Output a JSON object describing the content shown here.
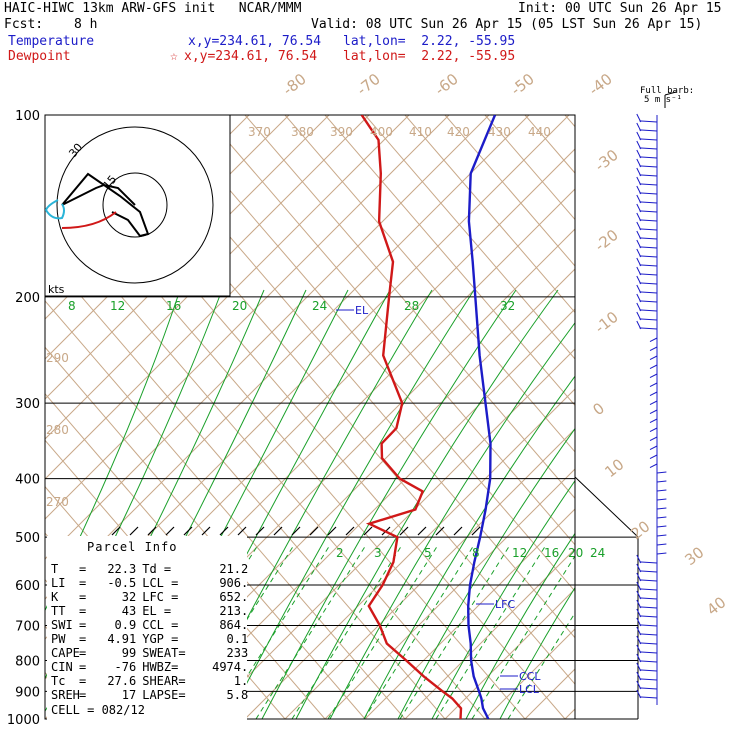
{
  "header": {
    "model": "HAIC-HIWC 13km ARW-GFS init   NCAR/MMM",
    "init": "Init: 00 UTC Sun 26 Apr 15",
    "fcst_label": "Fcst:",
    "fcst_value": "8 h",
    "valid": "Valid: 08 UTC Sun 26 Apr 15 (05 LST Sun 26 Apr 15)",
    "temp_label": "Temperature",
    "temp_xy": "x,y=234.61, 76.54",
    "temp_latlon": "lat,lon=  2.22, -55.95",
    "dew_label": "Dewpoint",
    "dew_xy": "x,y=234.61, 76.54",
    "dew_latlon": "lat,lon=  2.22, -55.95",
    "barb_label_1": "Full barb:",
    "barb_label_2": "5 m s⁻¹"
  },
  "parcel": {
    "title": "Parcel Info",
    "rows": [
      {
        "l": "T",
        "lv": "22.3",
        "r": "Td =",
        "rv": "21.2"
      },
      {
        "l": "LI",
        "lv": "-0.5",
        "r": "LCL =",
        "rv": "906."
      },
      {
        "l": "K",
        "lv": "32",
        "r": "LFC =",
        "rv": "652."
      },
      {
        "l": "TT",
        "lv": "43",
        "r": "EL =",
        "rv": "213."
      },
      {
        "l": "SWI",
        "lv": "0.9",
        "r": "CCL =",
        "rv": "864."
      },
      {
        "l": "PW",
        "lv": "4.91",
        "r": "YGP =",
        "rv": "0.1"
      },
      {
        "l": "CAPE",
        "lv": "99",
        "r": "SWEAT=",
        "rv": "233"
      },
      {
        "l": "CIN",
        "lv": "-76",
        "r": "HWBZ=",
        "rv": "4974."
      },
      {
        "l": "Tc",
        "lv": "27.6",
        "r": "SHEAR=",
        "rv": "1."
      },
      {
        "l": "SREH",
        "lv": "17",
        "r": "LAPSE=",
        "rv": "5.8"
      }
    ],
    "cell": "CELL = 082/12"
  },
  "chart_data": {
    "type": "line",
    "title": "",
    "ylabel": "",
    "pressure_levels": [
      100,
      200,
      300,
      400,
      500,
      600,
      700,
      800,
      900,
      1000
    ],
    "dry_adiabat_labels": [
      {
        "label": "370"
      },
      {
        "label": "380"
      },
      {
        "label": "390"
      },
      {
        "label": "400"
      },
      {
        "label": "410"
      },
      {
        "label": "420"
      },
      {
        "label": "430"
      },
      {
        "label": "440"
      },
      {
        "label": "290"
      },
      {
        "label": "280"
      },
      {
        "label": "270"
      }
    ],
    "isotherm_labels": [
      "-80",
      "-70",
      "-60",
      "-50",
      "-40",
      "-30",
      "-20",
      "-10",
      "0",
      "10",
      "20",
      "30",
      "40"
    ],
    "mixing_ratio_labels_upper": [
      "8",
      "12",
      "16",
      "20",
      "24",
      "28",
      "32"
    ],
    "mixing_ratio_labels_lower": [
      "2",
      "3",
      "5",
      "8",
      "12",
      "16",
      "20",
      "24"
    ],
    "series": [
      {
        "name": "Temperature",
        "color": "#1c1cc8",
        "points": [
          [
            1000,
            27.3
          ],
          [
            960,
            24.6
          ],
          [
            925,
            22.7
          ],
          [
            900,
            21.1
          ],
          [
            850,
            17.7
          ],
          [
            800,
            14.6
          ],
          [
            750,
            11.7
          ],
          [
            700,
            8.3
          ],
          [
            650,
            5.0
          ],
          [
            600,
            1.8
          ],
          [
            550,
            -1.3
          ],
          [
            500,
            -4.5
          ],
          [
            450,
            -8.2
          ],
          [
            400,
            -12.6
          ],
          [
            350,
            -18.4
          ],
          [
            300,
            -26.0
          ],
          [
            250,
            -35.0
          ],
          [
            200,
            -45.5
          ],
          [
            175,
            -51.8
          ],
          [
            150,
            -59.2
          ],
          [
            125,
            -66.9
          ],
          [
            100,
            -72.6
          ]
        ]
      },
      {
        "name": "Dewpoint",
        "color": "#d01818",
        "points": [
          [
            1000,
            22.6
          ],
          [
            960,
            20.9
          ],
          [
            925,
            17.8
          ],
          [
            900,
            15.0
          ],
          [
            850,
            9.3
          ],
          [
            800,
            3.7
          ],
          [
            750,
            -2.4
          ],
          [
            700,
            -6.6
          ],
          [
            650,
            -11.7
          ],
          [
            600,
            -12.9
          ],
          [
            550,
            -14.9
          ],
          [
            500,
            -18.4
          ],
          [
            475,
            -25.4
          ],
          [
            450,
            -20.0
          ],
          [
            420,
            -21.8
          ],
          [
            400,
            -27.8
          ],
          [
            370,
            -34.2
          ],
          [
            350,
            -36.7
          ],
          [
            330,
            -36.8
          ],
          [
            300,
            -40.0
          ],
          [
            250,
            -51.2
          ],
          [
            200,
            -60.0
          ],
          [
            175,
            -65.2
          ],
          [
            150,
            -74.3
          ],
          [
            125,
            -82.0
          ],
          [
            110,
            -88.0
          ],
          [
            100,
            -95.0
          ]
        ]
      }
    ],
    "parcel_labels": [
      "EL",
      "LFC",
      "CCL",
      "LCL"
    ],
    "hodograph": {
      "unit_label": "kts",
      "ring_labels": [
        "30",
        "15"
      ]
    }
  }
}
